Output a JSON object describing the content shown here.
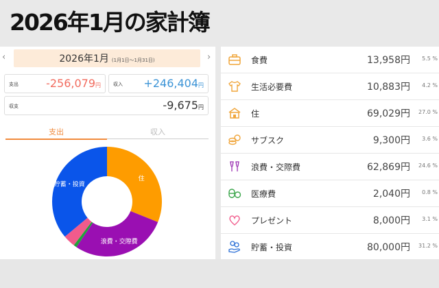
{
  "page_title": "2026年1月の家計簿",
  "header": {
    "month": "2026年1月",
    "range": "(1月1日～1月31日)",
    "prev": "‹",
    "next": "›"
  },
  "summary": {
    "expense": {
      "label": "支出",
      "value": "-256,079",
      "unit": "円",
      "color": "#f26b5e"
    },
    "income": {
      "label": "収入",
      "value": "+246,404",
      "unit": "円",
      "color": "#3a93d6"
    },
    "balance": {
      "label": "収支",
      "value": "-9,675",
      "unit": "円"
    }
  },
  "tabs": [
    {
      "label": "支出"
    },
    {
      "label": "収入"
    }
  ],
  "chart_data": {
    "type": "pie",
    "labels": [
      "住",
      "浪費・交際費",
      "医療費",
      "プレゼント",
      "貯蓄・投資"
    ],
    "values": [
      69029,
      62869,
      2040,
      8000,
      80000
    ],
    "colors": [
      "#fe9c00",
      "#9a0fb2",
      "#21a33a",
      "#f15b8c",
      "#0a55ea"
    ],
    "center_hole": true
  },
  "categories": [
    {
      "name": "食費",
      "amount": "13,958円",
      "percent": "5.5 %",
      "icon": "lunchbox-icon"
    },
    {
      "name": "生活必要費",
      "amount": "10,883円",
      "percent": "4.2 %",
      "icon": "shirt-icon"
    },
    {
      "name": "住",
      "amount": "69,029円",
      "percent": "27.0 %",
      "icon": "house-icon"
    },
    {
      "name": "サブスク",
      "amount": "9,300円",
      "percent": "3.6 %",
      "icon": "coins-icon"
    },
    {
      "name": "浪費・交際費",
      "amount": "62,869円",
      "percent": "24.6 %",
      "icon": "champagne-icon"
    },
    {
      "name": "医療費",
      "amount": "2,040円",
      "percent": "0.8 %",
      "icon": "pills-icon"
    },
    {
      "name": "プレゼント",
      "amount": "8,000円",
      "percent": "3.1 %",
      "icon": "heart-icon"
    },
    {
      "name": "貯蓄・投資",
      "amount": "80,000円",
      "percent": "31.2 %",
      "icon": "savings-icon"
    }
  ]
}
